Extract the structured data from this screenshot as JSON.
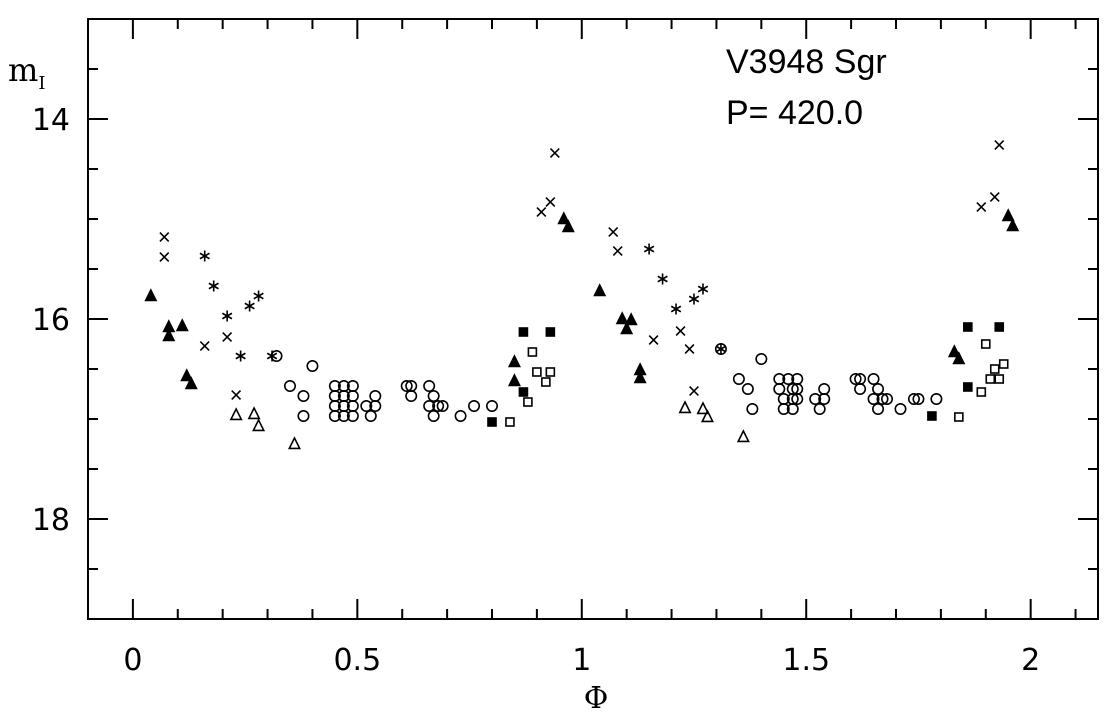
{
  "chart_data": {
    "type": "scatter",
    "title": "V3948 Sgr",
    "subtitle": "P= 420.0",
    "xlabel": "Φ",
    "ylabel": "m",
    "ylabel_sub": "I",
    "xlim": [
      -0.1,
      2.15
    ],
    "ylim": [
      19.0,
      13.0
    ],
    "y_inverted": true,
    "grid": false,
    "x_ticks_labeled": [
      {
        "v": 0,
        "label": "0"
      },
      {
        "v": 0.5,
        "label": "0.5"
      },
      {
        "v": 1,
        "label": "1"
      },
      {
        "v": 1.5,
        "label": "1.5"
      },
      {
        "v": 2,
        "label": "2"
      }
    ],
    "x_ticks_minor": [
      0.1,
      0.2,
      0.3,
      0.4,
      0.6,
      0.7,
      0.8,
      0.9,
      1.1,
      1.2,
      1.3,
      1.4,
      1.6,
      1.7,
      1.8,
      1.9,
      2.1
    ],
    "y_ticks_labeled": [
      {
        "v": 14,
        "label": "14"
      },
      {
        "v": 16,
        "label": "16"
      },
      {
        "v": 18,
        "label": "18"
      }
    ],
    "y_ticks_minor": [
      13.5,
      14.5,
      15,
      15.5,
      16.5,
      17,
      17.5,
      18.5
    ],
    "series": [
      {
        "marker": "triangle-filled",
        "points": [
          [
            0.04,
            15.77
          ],
          [
            0.08,
            16.08
          ],
          [
            0.11,
            16.07
          ],
          [
            0.08,
            16.17
          ],
          [
            0.12,
            16.57
          ],
          [
            0.13,
            16.65
          ],
          [
            0.85,
            16.43
          ],
          [
            0.85,
            16.62
          ],
          [
            0.96,
            15.0
          ],
          [
            0.97,
            15.08
          ],
          [
            1.04,
            15.72
          ],
          [
            1.09,
            16.0
          ],
          [
            1.11,
            16.01
          ],
          [
            1.1,
            16.1
          ],
          [
            1.13,
            16.51
          ],
          [
            1.13,
            16.59
          ],
          [
            1.83,
            16.33
          ],
          [
            1.84,
            16.4
          ],
          [
            1.95,
            14.97
          ],
          [
            1.96,
            15.07
          ]
        ]
      },
      {
        "marker": "triangle-open",
        "points": [
          [
            0.23,
            16.96
          ],
          [
            0.27,
            16.95
          ],
          [
            0.28,
            17.07
          ],
          [
            0.36,
            17.25
          ],
          [
            1.23,
            16.89
          ],
          [
            1.27,
            16.9
          ],
          [
            1.28,
            16.98
          ],
          [
            1.36,
            17.18
          ]
        ]
      },
      {
        "marker": "cross",
        "points": [
          [
            0.07,
            15.18
          ],
          [
            0.07,
            15.38
          ],
          [
            0.16,
            16.27
          ],
          [
            0.21,
            16.18
          ],
          [
            0.23,
            16.76
          ],
          [
            0.91,
            14.93
          ],
          [
            0.93,
            14.83
          ],
          [
            0.94,
            14.34
          ],
          [
            1.07,
            15.13
          ],
          [
            1.08,
            15.32
          ],
          [
            1.16,
            16.21
          ],
          [
            1.22,
            16.12
          ],
          [
            1.24,
            16.3
          ],
          [
            1.25,
            16.72
          ],
          [
            1.89,
            14.88
          ],
          [
            1.92,
            14.78
          ],
          [
            1.93,
            14.26
          ]
        ]
      },
      {
        "marker": "asterisk",
        "points": [
          [
            0.16,
            15.37
          ],
          [
            0.18,
            15.67
          ],
          [
            0.21,
            15.97
          ],
          [
            0.24,
            16.37
          ],
          [
            0.26,
            15.87
          ],
          [
            0.28,
            15.77
          ],
          [
            0.31,
            16.37
          ],
          [
            1.15,
            15.3
          ],
          [
            1.18,
            15.6
          ],
          [
            1.21,
            15.9
          ],
          [
            1.25,
            15.8
          ],
          [
            1.27,
            15.7
          ],
          [
            1.31,
            16.3
          ]
        ]
      },
      {
        "marker": "square-open",
        "points": [
          [
            0.84,
            17.03
          ],
          [
            0.88,
            16.83
          ],
          [
            0.89,
            16.33
          ],
          [
            0.9,
            16.53
          ],
          [
            0.92,
            16.63
          ],
          [
            0.93,
            16.53
          ],
          [
            1.89,
            16.73
          ],
          [
            1.9,
            16.25
          ],
          [
            1.91,
            16.6
          ],
          [
            1.92,
            16.5
          ],
          [
            1.93,
            16.6
          ],
          [
            1.94,
            16.45
          ],
          [
            1.84,
            16.98
          ]
        ]
      },
      {
        "marker": "square-filled",
        "points": [
          [
            0.8,
            17.03
          ],
          [
            0.87,
            16.13
          ],
          [
            0.87,
            16.73
          ],
          [
            0.93,
            16.13
          ],
          [
            1.78,
            16.97
          ],
          [
            1.86,
            16.08
          ],
          [
            1.86,
            16.68
          ],
          [
            1.93,
            16.08
          ]
        ]
      },
      {
        "marker": "circle-open",
        "points": [
          [
            0.32,
            16.37
          ],
          [
            0.35,
            16.67
          ],
          [
            0.38,
            16.77
          ],
          [
            0.38,
            16.97
          ],
          [
            0.4,
            16.47
          ],
          [
            0.45,
            16.67
          ],
          [
            0.45,
            16.77
          ],
          [
            0.45,
            16.87
          ],
          [
            0.45,
            16.97
          ],
          [
            0.47,
            16.67
          ],
          [
            0.47,
            16.77
          ],
          [
            0.47,
            16.87
          ],
          [
            0.47,
            16.97
          ],
          [
            0.49,
            16.67
          ],
          [
            0.49,
            16.77
          ],
          [
            0.49,
            16.87
          ],
          [
            0.49,
            16.97
          ],
          [
            0.52,
            16.87
          ],
          [
            0.53,
            16.97
          ],
          [
            0.54,
            16.77
          ],
          [
            0.54,
            16.87
          ],
          [
            0.61,
            16.67
          ],
          [
            0.62,
            16.67
          ],
          [
            0.62,
            16.77
          ],
          [
            0.66,
            16.67
          ],
          [
            0.66,
            16.87
          ],
          [
            0.67,
            16.97
          ],
          [
            0.67,
            16.77
          ],
          [
            0.68,
            16.87
          ],
          [
            0.69,
            16.87
          ],
          [
            0.73,
            16.97
          ],
          [
            0.76,
            16.87
          ],
          [
            0.8,
            16.87
          ],
          [
            1.31,
            16.3
          ],
          [
            1.35,
            16.6
          ],
          [
            1.37,
            16.7
          ],
          [
            1.38,
            16.9
          ],
          [
            1.4,
            16.4
          ],
          [
            1.44,
            16.6
          ],
          [
            1.44,
            16.7
          ],
          [
            1.45,
            16.8
          ],
          [
            1.45,
            16.9
          ],
          [
            1.46,
            16.6
          ],
          [
            1.47,
            16.7
          ],
          [
            1.47,
            16.8
          ],
          [
            1.47,
            16.9
          ],
          [
            1.48,
            16.6
          ],
          [
            1.48,
            16.7
          ],
          [
            1.48,
            16.8
          ],
          [
            1.52,
            16.8
          ],
          [
            1.53,
            16.9
          ],
          [
            1.54,
            16.7
          ],
          [
            1.54,
            16.8
          ],
          [
            1.61,
            16.6
          ],
          [
            1.62,
            16.6
          ],
          [
            1.62,
            16.7
          ],
          [
            1.65,
            16.6
          ],
          [
            1.65,
            16.8
          ],
          [
            1.66,
            16.9
          ],
          [
            1.66,
            16.7
          ],
          [
            1.67,
            16.8
          ],
          [
            1.68,
            16.8
          ],
          [
            1.71,
            16.9
          ],
          [
            1.74,
            16.8
          ],
          [
            1.75,
            16.8
          ],
          [
            1.79,
            16.8
          ]
        ]
      }
    ]
  }
}
